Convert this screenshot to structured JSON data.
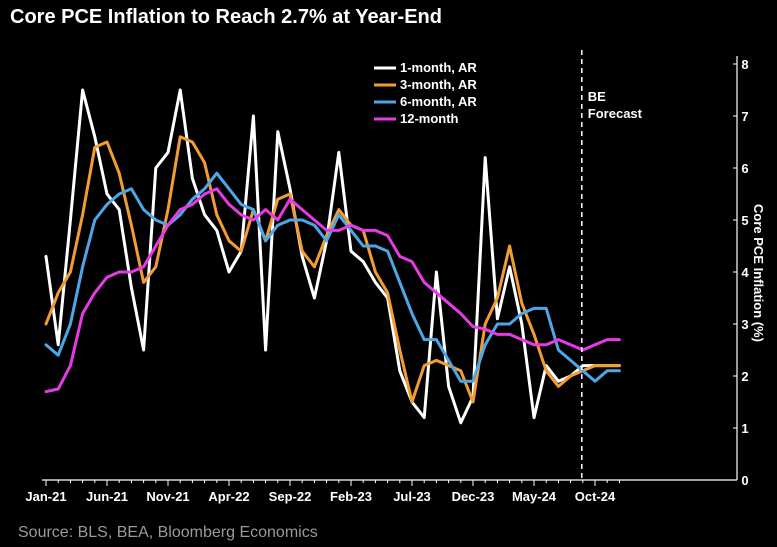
{
  "title": "Core PCE Inflation to Reach 2.7% at Year-End",
  "source": "Source: BLS, BEA, Bloomberg Economics",
  "chart_data": {
    "type": "line",
    "ylabel": "Core PCE Inflation (%)",
    "ylim": [
      0,
      8
    ],
    "y_ticks": [
      "0",
      "1",
      "2",
      "3",
      "4",
      "5",
      "6",
      "7",
      "8"
    ],
    "x_tick_labels": [
      "Jan-21",
      "Jun-21",
      "Nov-21",
      "Apr-22",
      "Sep-22",
      "Feb-23",
      "Jul-23",
      "Dec-23",
      "May-24",
      "Oct-24"
    ],
    "x_start": "2021-01",
    "x_end": "2024-12",
    "forecast_start": "2024-09",
    "forecast_label": [
      "BE",
      "Forecast"
    ],
    "grid": false,
    "legend_position": "top-center",
    "series": [
      {
        "name": "1-month, AR",
        "color": "#ffffff",
        "values": [
          4.3,
          2.6,
          5.0,
          7.5,
          6.6,
          5.5,
          5.2,
          3.7,
          2.5,
          6.0,
          6.3,
          7.5,
          5.8,
          5.1,
          4.8,
          4.0,
          4.4,
          7.0,
          2.5,
          6.7,
          5.6,
          4.3,
          3.5,
          4.6,
          6.3,
          4.4,
          4.2,
          3.8,
          3.5,
          2.1,
          1.5,
          1.2,
          4.0,
          1.8,
          1.1,
          1.6,
          6.2,
          3.1,
          4.1,
          3.0,
          1.2,
          2.2,
          1.9,
          2.0,
          2.2,
          2.2,
          2.2,
          2.2
        ]
      },
      {
        "name": "3-month, AR",
        "color": "#f29c33",
        "values": [
          3.0,
          3.6,
          4.0,
          5.1,
          6.4,
          6.5,
          5.9,
          4.9,
          3.8,
          4.1,
          5.2,
          6.6,
          6.5,
          6.1,
          5.1,
          4.6,
          4.4,
          5.2,
          4.6,
          5.4,
          5.5,
          4.4,
          4.1,
          4.7,
          5.2,
          4.9,
          4.8,
          4.0,
          3.6,
          2.5,
          1.5,
          2.2,
          2.3,
          2.2,
          2.1,
          1.5,
          3.0,
          3.5,
          4.5,
          3.4,
          2.8,
          2.1,
          1.8,
          2.0,
          2.1,
          2.2,
          2.2,
          2.2
        ]
      },
      {
        "name": "6-month, AR",
        "color": "#4da6e6",
        "values": [
          2.6,
          2.4,
          3.0,
          4.1,
          5.0,
          5.3,
          5.5,
          5.6,
          5.2,
          5.0,
          4.9,
          5.1,
          5.4,
          5.6,
          5.9,
          5.6,
          5.3,
          5.2,
          4.6,
          4.9,
          5.0,
          5.0,
          4.9,
          4.6,
          5.1,
          4.8,
          4.5,
          4.5,
          4.4,
          3.8,
          3.2,
          2.7,
          2.7,
          2.3,
          1.9,
          1.9,
          2.6,
          3.0,
          3.0,
          3.2,
          3.3,
          3.3,
          2.5,
          2.3,
          2.1,
          1.9,
          2.1,
          2.1
        ]
      },
      {
        "name": "12-month",
        "color": "#e63ae6",
        "values": [
          1.7,
          1.75,
          2.2,
          3.2,
          3.6,
          3.9,
          4.0,
          4.0,
          4.1,
          4.5,
          4.9,
          5.2,
          5.3,
          5.5,
          5.6,
          5.3,
          5.1,
          5.0,
          5.2,
          5.0,
          5.4,
          5.2,
          5.0,
          4.8,
          4.8,
          4.9,
          4.8,
          4.8,
          4.7,
          4.3,
          4.2,
          3.8,
          3.6,
          3.4,
          3.2,
          2.95,
          2.9,
          2.8,
          2.8,
          2.7,
          2.6,
          2.6,
          2.7,
          2.6,
          2.5,
          2.6,
          2.7,
          2.7
        ]
      }
    ]
  }
}
